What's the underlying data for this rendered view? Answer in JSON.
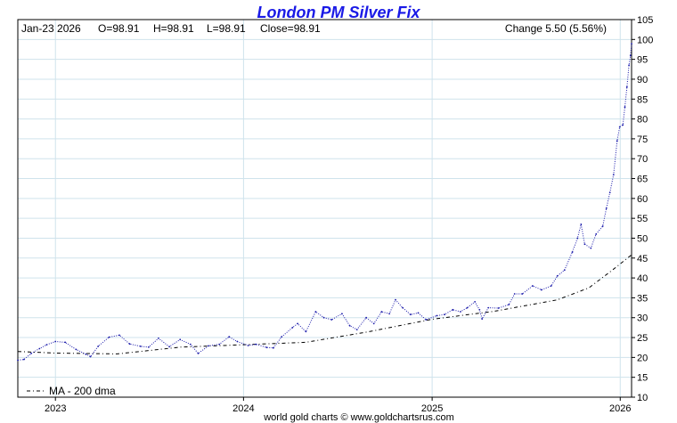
{
  "chart_data": {
    "type": "line",
    "title": "London PM Silver Fix",
    "info": {
      "date": "Jan-23  2026",
      "open": "O=98.91",
      "high": "H=98.91",
      "low": "L=98.91",
      "close": "Close=98.91",
      "change": "Change 5.50 (5.56%)"
    },
    "credit": "world gold charts © www.goldchartsrus.com",
    "ylim": [
      10,
      105
    ],
    "yticks": [
      10,
      15,
      20,
      25,
      30,
      35,
      40,
      45,
      50,
      55,
      60,
      65,
      70,
      75,
      80,
      85,
      90,
      95,
      100,
      105
    ],
    "xlim": [
      "2022-10-20",
      "2026-01-23"
    ],
    "xticks": [
      {
        "label": "2023",
        "date": "2023-01-01"
      },
      {
        "label": "2024",
        "date": "2024-01-01"
      },
      {
        "label": "2025",
        "date": "2025-01-01"
      },
      {
        "label": "2026",
        "date": "2026-01-01"
      }
    ],
    "grid": true,
    "axis_position": "right",
    "legend_placement": "bottom-left",
    "colors": {
      "price": "#1a1aaa",
      "ma": "#000000",
      "title": "#1a1ae6",
      "grid": "#cfe3ec"
    },
    "series": [
      {
        "name": "",
        "style": "dotted",
        "points": [
          [
            "2022-10-20",
            19.3
          ],
          [
            "2022-11-01",
            19.5
          ],
          [
            "2022-11-15",
            21.0
          ],
          [
            "2022-12-01",
            22.2
          ],
          [
            "2022-12-15",
            23.2
          ],
          [
            "2023-01-01",
            24.0
          ],
          [
            "2023-01-20",
            23.8
          ],
          [
            "2023-02-10",
            22.0
          ],
          [
            "2023-03-01",
            20.8
          ],
          [
            "2023-03-10",
            20.2
          ],
          [
            "2023-03-25",
            22.8
          ],
          [
            "2023-04-15",
            25.1
          ],
          [
            "2023-05-05",
            25.6
          ],
          [
            "2023-05-25",
            23.4
          ],
          [
            "2023-06-15",
            22.8
          ],
          [
            "2023-07-01",
            22.6
          ],
          [
            "2023-07-20",
            24.8
          ],
          [
            "2023-08-10",
            22.7
          ],
          [
            "2023-08-31",
            24.5
          ],
          [
            "2023-09-20",
            23.3
          ],
          [
            "2023-10-05",
            21.0
          ],
          [
            "2023-10-25",
            22.9
          ],
          [
            "2023-11-15",
            23.3
          ],
          [
            "2023-12-04",
            25.2
          ],
          [
            "2023-12-20",
            24.0
          ],
          [
            "2024-01-10",
            23.0
          ],
          [
            "2024-01-25",
            23.3
          ],
          [
            "2024-02-15",
            22.5
          ],
          [
            "2024-02-28",
            22.4
          ],
          [
            "2024-03-15",
            25.2
          ],
          [
            "2024-04-05",
            27.5
          ],
          [
            "2024-04-15",
            28.5
          ],
          [
            "2024-05-01",
            26.5
          ],
          [
            "2024-05-20",
            31.5
          ],
          [
            "2024-06-05",
            30.0
          ],
          [
            "2024-06-20",
            29.5
          ],
          [
            "2024-07-10",
            31.0
          ],
          [
            "2024-07-25",
            28.0
          ],
          [
            "2024-08-08",
            27.0
          ],
          [
            "2024-08-26",
            30.0
          ],
          [
            "2024-09-10",
            28.5
          ],
          [
            "2024-09-25",
            31.5
          ],
          [
            "2024-10-10",
            31.0
          ],
          [
            "2024-10-22",
            34.5
          ],
          [
            "2024-11-05",
            32.5
          ],
          [
            "2024-11-20",
            30.8
          ],
          [
            "2024-12-05",
            31.2
          ],
          [
            "2024-12-20",
            29.5
          ],
          [
            "2025-01-10",
            30.5
          ],
          [
            "2025-01-25",
            30.8
          ],
          [
            "2025-02-10",
            32.0
          ],
          [
            "2025-02-25",
            31.5
          ],
          [
            "2025-03-10",
            32.5
          ],
          [
            "2025-03-25",
            34.0
          ],
          [
            "2025-04-03",
            32.0
          ],
          [
            "2025-04-08",
            29.7
          ],
          [
            "2025-04-20",
            32.5
          ],
          [
            "2025-05-10",
            32.4
          ],
          [
            "2025-05-30",
            33.3
          ],
          [
            "2025-06-10",
            36.0
          ],
          [
            "2025-06-25",
            36.0
          ],
          [
            "2025-07-15",
            38.0
          ],
          [
            "2025-08-01",
            37.0
          ],
          [
            "2025-08-20",
            38.0
          ],
          [
            "2025-09-01",
            40.5
          ],
          [
            "2025-09-15",
            42.0
          ],
          [
            "2025-09-30",
            46.5
          ],
          [
            "2025-10-10",
            50.0
          ],
          [
            "2025-10-17",
            53.5
          ],
          [
            "2025-10-24",
            48.5
          ],
          [
            "2025-11-05",
            47.5
          ],
          [
            "2025-11-15",
            51.0
          ],
          [
            "2025-11-28",
            53.0
          ],
          [
            "2025-12-05",
            57.5
          ],
          [
            "2025-12-12",
            61.5
          ],
          [
            "2025-12-19",
            66.0
          ],
          [
            "2025-12-26",
            74.5
          ],
          [
            "2025-12-31",
            78.0
          ],
          [
            "2026-01-06",
            78.5
          ],
          [
            "2026-01-10",
            83.0
          ],
          [
            "2026-01-14",
            88.0
          ],
          [
            "2026-01-18",
            93.5
          ],
          [
            "2026-01-21",
            96.0
          ],
          [
            "2026-01-23",
            98.91
          ]
        ]
      },
      {
        "name": "MA - 200 dma",
        "style": "dashdot",
        "points": [
          [
            "2022-10-20",
            21.5
          ],
          [
            "2023-01-01",
            21.1
          ],
          [
            "2023-05-01",
            20.9
          ],
          [
            "2023-09-01",
            22.6
          ],
          [
            "2024-01-01",
            23.2
          ],
          [
            "2024-05-01",
            23.8
          ],
          [
            "2024-09-01",
            26.5
          ],
          [
            "2025-01-01",
            29.6
          ],
          [
            "2025-05-01",
            31.6
          ],
          [
            "2025-09-01",
            34.5
          ],
          [
            "2025-11-01",
            37.5
          ],
          [
            "2025-12-15",
            41.8
          ],
          [
            "2026-01-23",
            45.8
          ]
        ]
      }
    ]
  }
}
